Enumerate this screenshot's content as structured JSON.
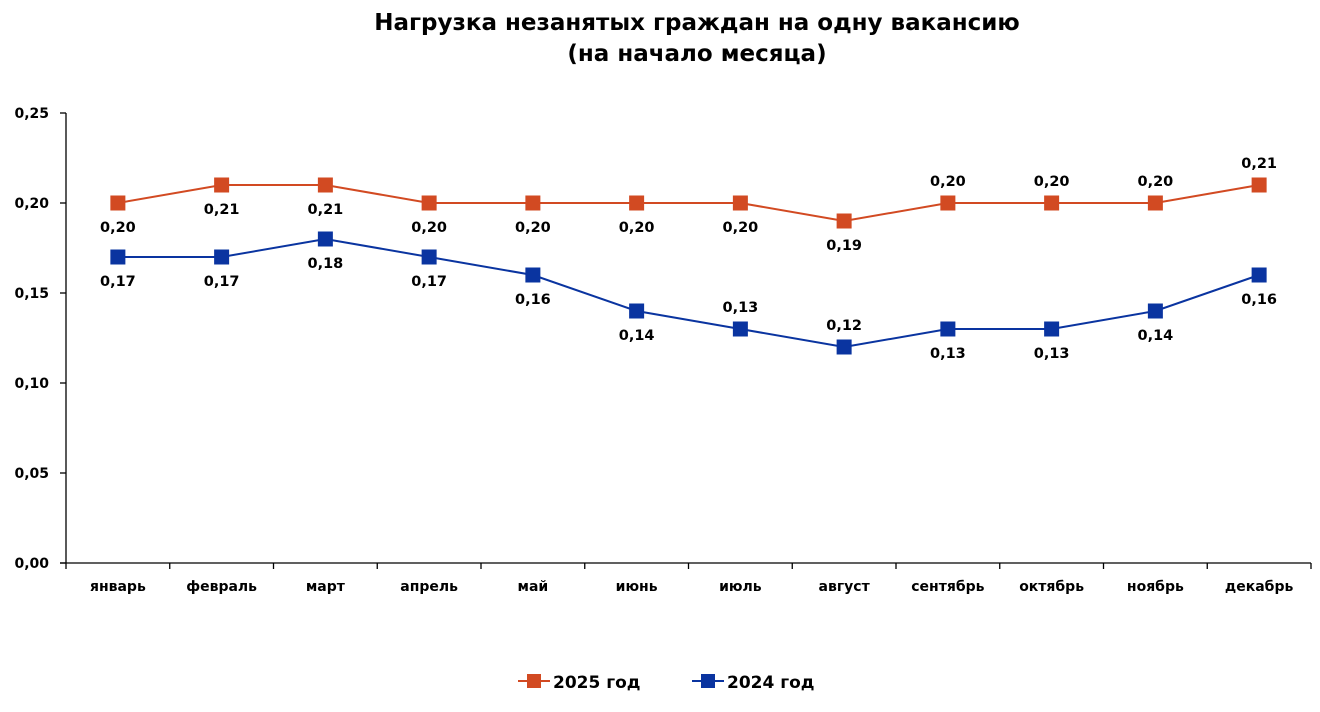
{
  "chart_data": {
    "type": "line",
    "title": "Нагрузка незанятых граждан на одну вакансию",
    "subtitle": "(на начало месяца)",
    "xlabel": "",
    "ylabel": "",
    "ylim": [
      0,
      0.25
    ],
    "y_ticks": [
      "0,00",
      "0,05",
      "0,10",
      "0,15",
      "0,20",
      "0,25"
    ],
    "y_tick_values": [
      0,
      0.05,
      0.1,
      0.15,
      0.2,
      0.25
    ],
    "grid": false,
    "legend_position": "bottom",
    "categories": [
      "январь",
      "февраль",
      "март",
      "апрель",
      "май",
      "июнь",
      "июль",
      "август",
      "сентябрь",
      "октябрь",
      "ноябрь",
      "декабрь"
    ],
    "series": [
      {
        "name": "2025 год",
        "color": "#D24A22",
        "values": [
          0.2,
          0.21,
          0.21,
          0.2,
          0.2,
          0.2,
          0.2,
          0.19,
          0.2,
          0.2,
          0.2,
          0.21
        ],
        "labels": [
          "0,20",
          "0,21",
          "0,21",
          "0,20",
          "0,20",
          "0,20",
          "0,20",
          "0,19",
          "0,20",
          "0,20",
          "0,20",
          "0,21"
        ],
        "label_side": [
          "below",
          "below",
          "below",
          "below",
          "below",
          "below",
          "below",
          "below",
          "above",
          "above",
          "above",
          "above"
        ]
      },
      {
        "name": "2024 год",
        "color": "#0A34A0",
        "values": [
          0.17,
          0.17,
          0.18,
          0.17,
          0.16,
          0.14,
          0.13,
          0.12,
          0.13,
          0.13,
          0.14,
          0.16
        ],
        "labels": [
          "0,17",
          "0,17",
          "0,18",
          "0,17",
          "0,16",
          "0,14",
          "0,13",
          "0,12",
          "0,13",
          "0,13",
          "0,14",
          "0,16"
        ],
        "label_side": [
          "below",
          "below",
          "below",
          "below",
          "below",
          "below",
          "above",
          "above",
          "below",
          "below",
          "below",
          "below"
        ]
      }
    ]
  }
}
